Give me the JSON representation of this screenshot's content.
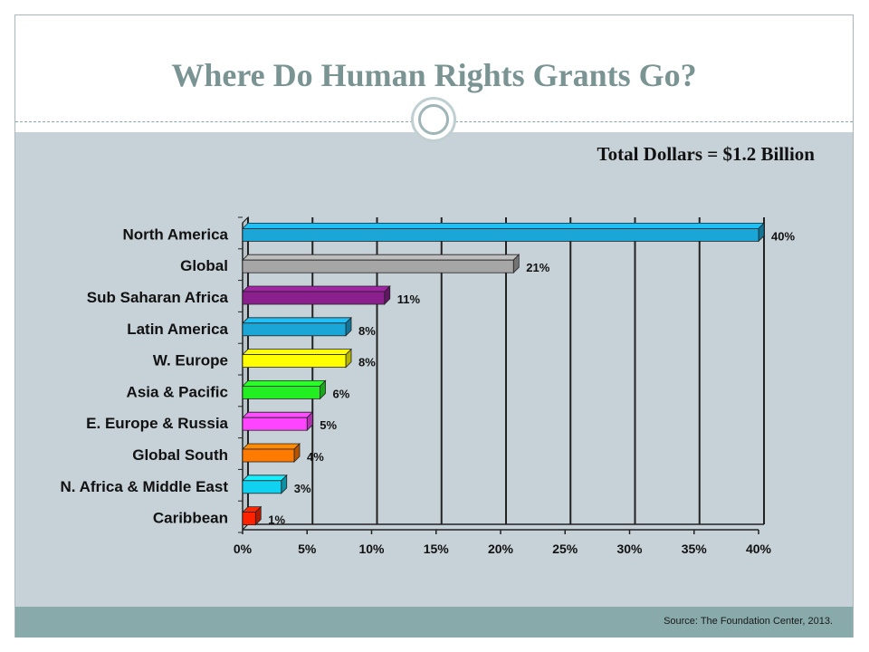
{
  "slide": {
    "title": "Where Do Human Rights Grants Go?",
    "subtitle": "Total Dollars = $1.2 Billion",
    "source": "Source: The Foundation Center, 2013."
  },
  "colors": {
    "title": "#7a9393",
    "content_bg": "#c7d2d8",
    "footer_bg": "#88aaab"
  },
  "chart_data": {
    "type": "bar",
    "orientation": "horizontal",
    "categories": [
      "North America",
      "Global",
      "Sub Saharan Africa",
      "Latin America",
      "W. Europe",
      "Asia & Pacific",
      "E. Europe & Russia",
      "Global South",
      "N. Africa & Middle East",
      "Caribbean"
    ],
    "values": [
      40,
      21,
      11,
      8,
      8,
      6,
      5,
      4,
      3,
      1
    ],
    "data_labels": [
      "40%",
      "21%",
      "11%",
      "8%",
      "8%",
      "6%",
      "5%",
      "4%",
      "3%",
      "1%"
    ],
    "bar_colors": [
      "#1aa7d8",
      "#a6a6a6",
      "#8b1f8e",
      "#1aa7d8",
      "#ffff00",
      "#22ee22",
      "#ff44ff",
      "#ff7a00",
      "#11d1f0",
      "#ff2200"
    ],
    "xlim": [
      0,
      40
    ],
    "xticks": [
      0,
      5,
      10,
      15,
      20,
      25,
      30,
      35,
      40
    ],
    "xtick_labels": [
      "0%",
      "5%",
      "10%",
      "15%",
      "20%",
      "25%",
      "30%",
      "35%",
      "40%"
    ],
    "grid": true,
    "legend": "none"
  }
}
